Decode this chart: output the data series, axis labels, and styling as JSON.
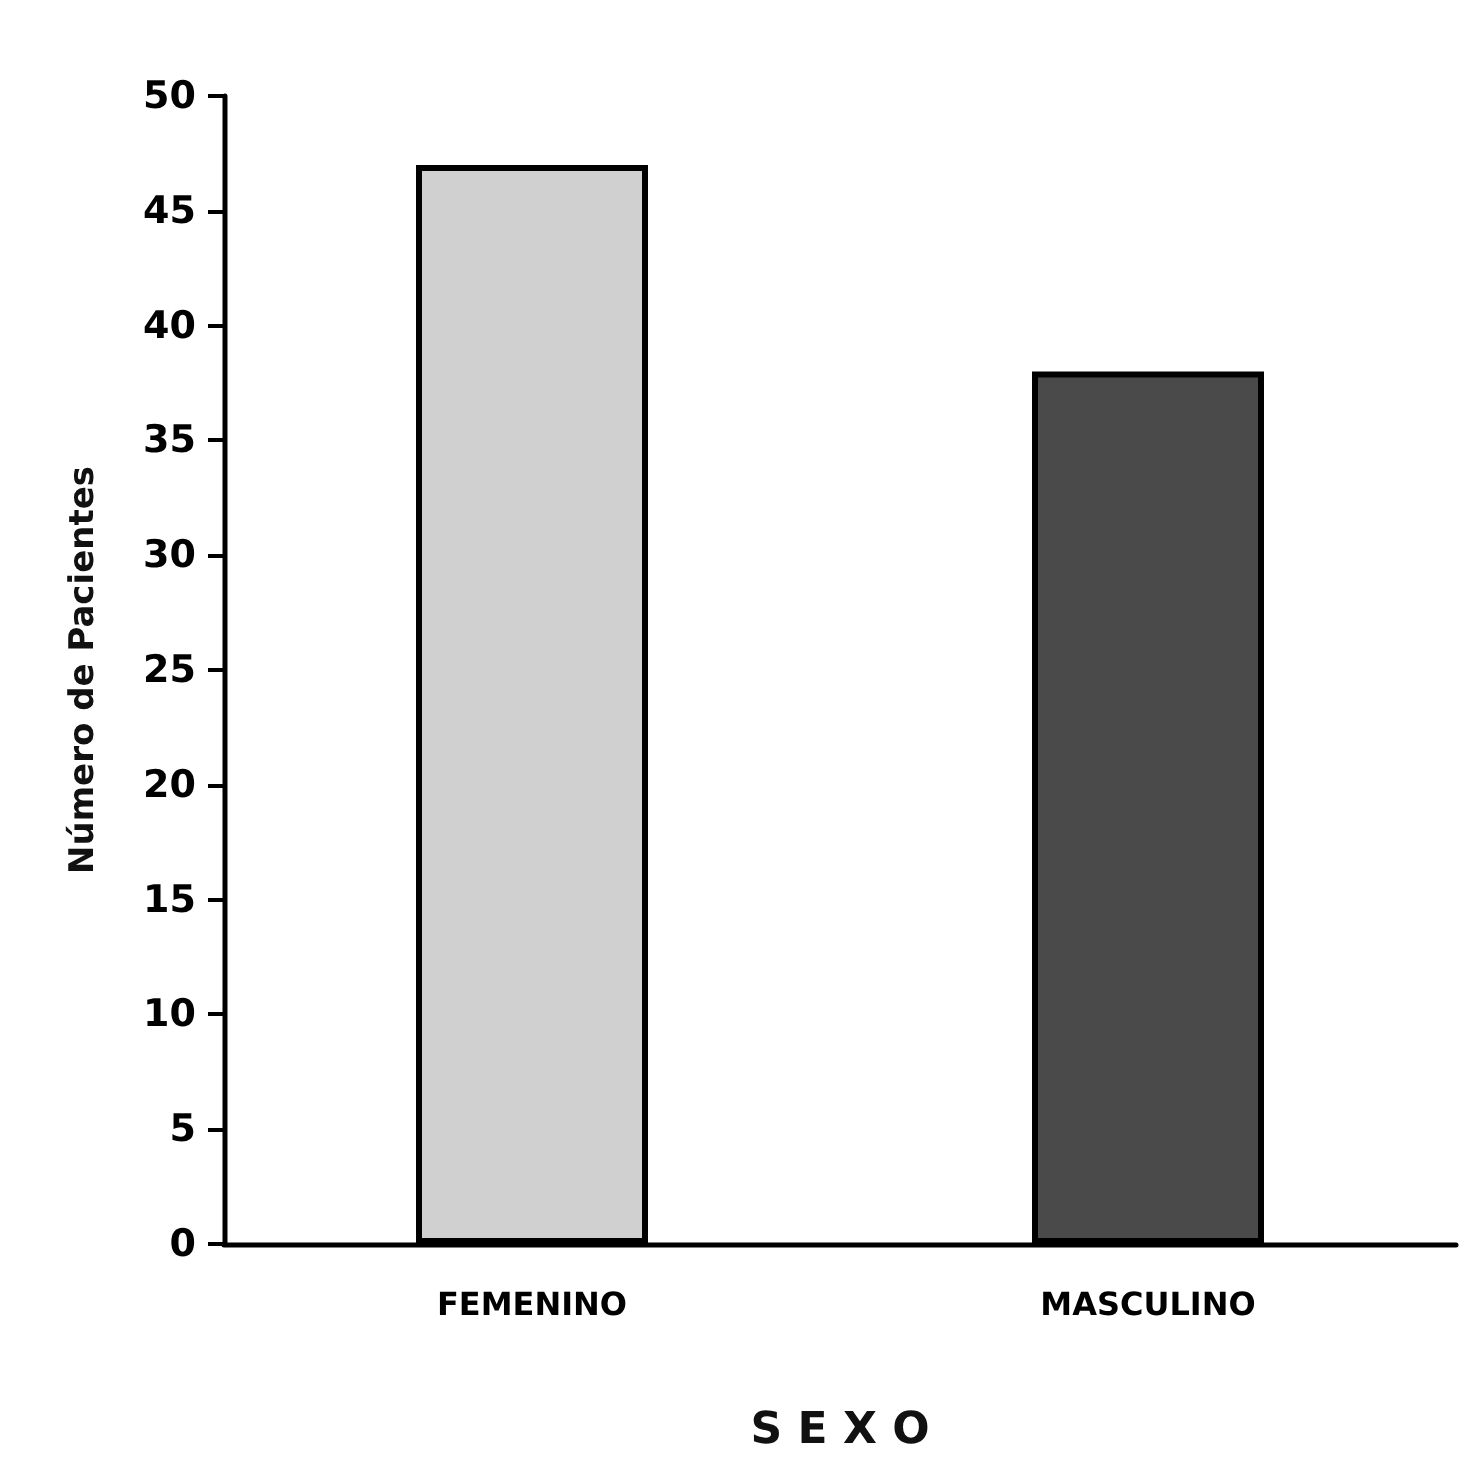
{
  "chart_data": {
    "type": "bar",
    "xlabel": "S E X O",
    "ylabel": "Número de Pacientes",
    "categories": [
      "FEMENINO",
      "MASCULINO"
    ],
    "values": [
      47,
      38
    ],
    "colors": [
      "#d0d0d0",
      "#4a4a4a"
    ],
    "ylim": [
      0,
      50
    ],
    "yticks": [
      0,
      5,
      10,
      15,
      20,
      25,
      30,
      35,
      40,
      45,
      50
    ]
  }
}
